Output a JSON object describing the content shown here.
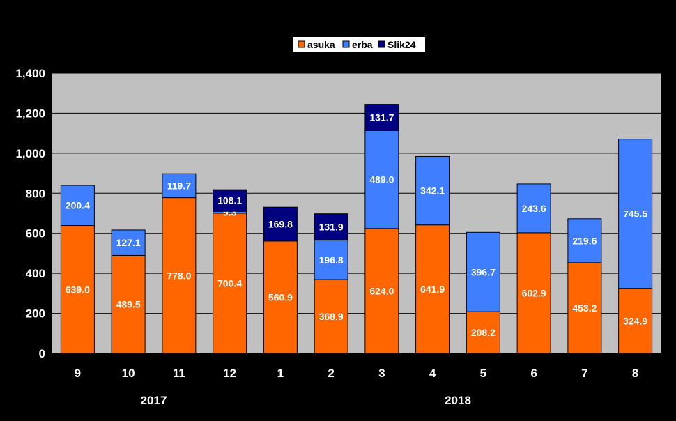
{
  "chart_data": {
    "type": "bar",
    "stacked": true,
    "categories": [
      "9",
      "10",
      "11",
      "12",
      "1",
      "2",
      "3",
      "4",
      "5",
      "6",
      "7",
      "8"
    ],
    "groups": [
      {
        "label": "2017",
        "from": 0,
        "to": 3
      },
      {
        "label": "2018",
        "from": 4,
        "to": 11
      }
    ],
    "series": [
      {
        "name": "asuka",
        "color": "#ff6600",
        "values": [
          639.0,
          489.5,
          778.0,
          700.4,
          560.9,
          368.9,
          624.0,
          641.9,
          208.2,
          602.9,
          453.2,
          324.9
        ]
      },
      {
        "name": "erba",
        "color": "#3f7fff",
        "values": [
          200.4,
          127.1,
          119.7,
          9.3,
          null,
          196.8,
          489.0,
          342.1,
          396.7,
          243.6,
          219.6,
          745.5
        ]
      },
      {
        "name": "Slik24",
        "color": "#000080",
        "values": [
          null,
          null,
          null,
          108.1,
          169.8,
          131.9,
          131.7,
          null,
          null,
          null,
          null,
          null
        ]
      }
    ],
    "value_labels": {
      "asuka": [
        "639.0",
        "489.5",
        "778.0",
        "700.4",
        "560.9",
        "368.9",
        "624.0",
        "641.9",
        "208.2",
        "602.9",
        "453.2",
        "324.9"
      ],
      "erba": [
        "200.4",
        "127.1",
        "119.7",
        "9.3",
        "",
        "196.8",
        "489.0",
        "342.1",
        "396.7",
        "243.6",
        "219.6",
        "745.5"
      ],
      "Slik24": [
        "",
        "",
        "",
        "108.1",
        "169.8",
        "131.9",
        "131.7",
        "",
        "",
        "",
        "",
        ""
      ]
    },
    "ylim": [
      0,
      1400
    ],
    "yticks": [
      0,
      200,
      400,
      600,
      800,
      1000,
      1200,
      1400
    ],
    "ytick_labels": [
      "0",
      "200",
      "400",
      "600",
      "800",
      "1,000",
      "1,200",
      "1,400"
    ],
    "grid": true,
    "legend_position": "top-center",
    "colors": {
      "background": "#000000",
      "plot_area": "#c0c0c0",
      "legend_bg": "#ffffff"
    }
  }
}
